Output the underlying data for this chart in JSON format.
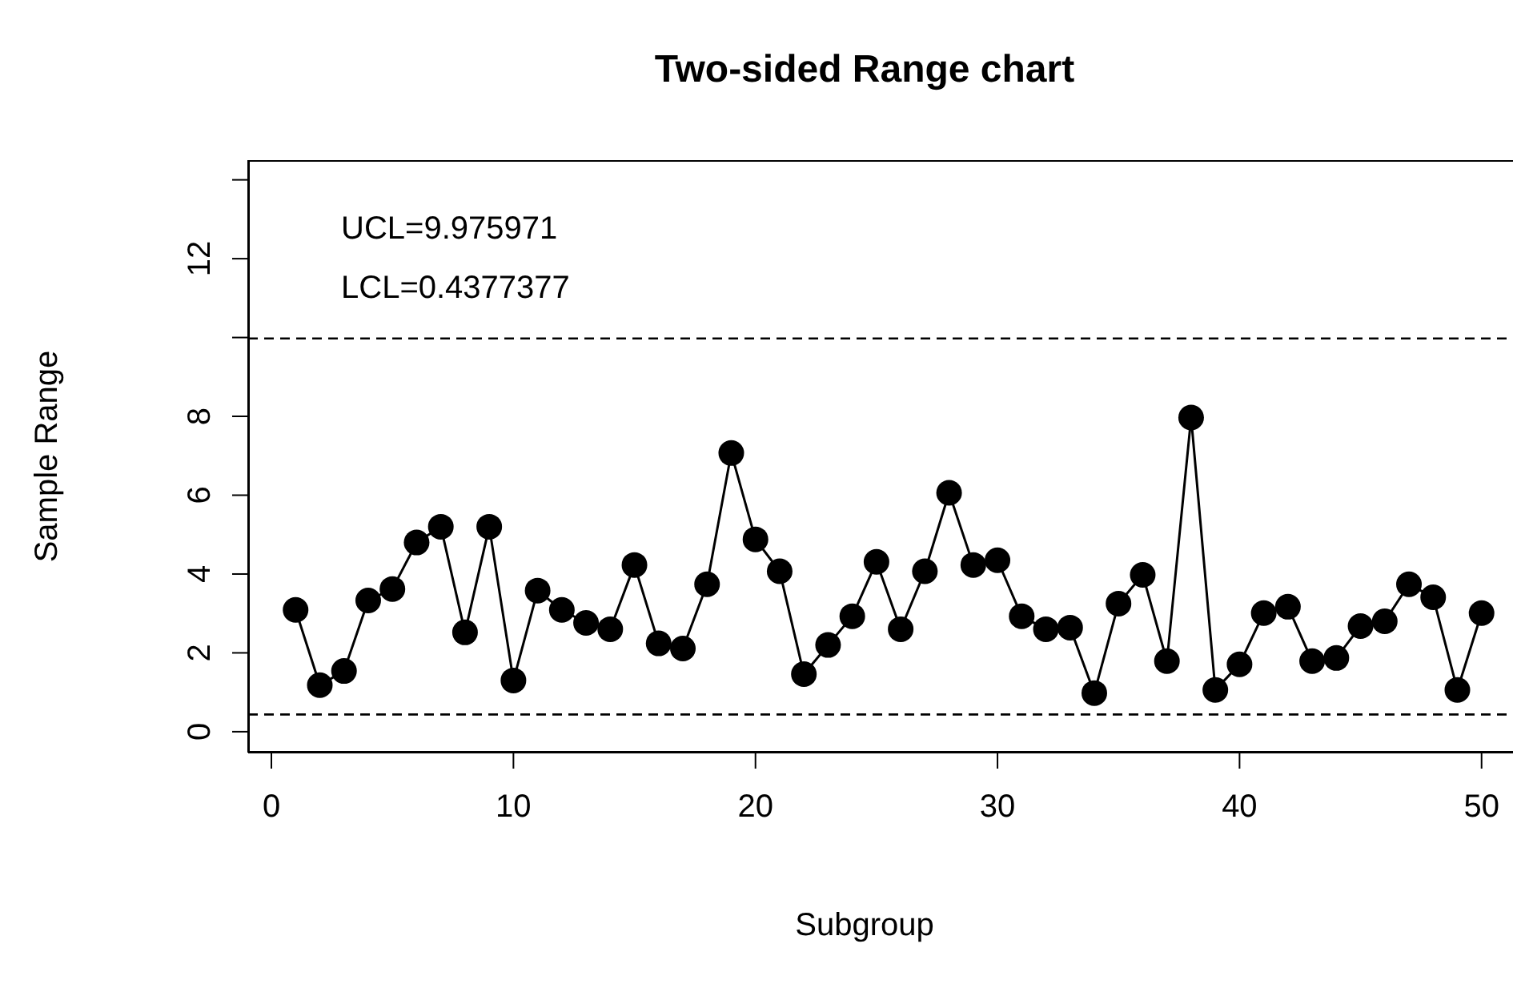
{
  "chart_data": {
    "type": "line",
    "title": "Two-sided Range chart",
    "xlabel": "Subgroup",
    "ylabel": "Sample Range",
    "annotations": [
      "UCL=9.975971",
      "LCL=0.4377377"
    ],
    "x": [
      1,
      2,
      3,
      4,
      5,
      6,
      7,
      8,
      9,
      10,
      11,
      12,
      13,
      14,
      15,
      16,
      17,
      18,
      19,
      20,
      21,
      22,
      23,
      24,
      25,
      26,
      27,
      28,
      29,
      30,
      31,
      32,
      33,
      34,
      35,
      36,
      37,
      38,
      39,
      40,
      41,
      42,
      43,
      44,
      45,
      46,
      47,
      48,
      49,
      50
    ],
    "series": [
      {
        "color": "#000000",
        "values": [
          3.09,
          1.18,
          1.54,
          3.33,
          3.62,
          4.8,
          5.2,
          2.52,
          5.2,
          1.3,
          3.58,
          3.09,
          2.76,
          2.6,
          4.23,
          2.24,
          2.11,
          3.74,
          7.07,
          4.88,
          4.07,
          1.46,
          2.2,
          2.93,
          4.31,
          2.6,
          4.07,
          6.06,
          4.23,
          4.35,
          2.93,
          2.6,
          2.64,
          0.98,
          3.25,
          3.98,
          1.79,
          7.97,
          1.06,
          1.71,
          3.01,
          3.17,
          1.79,
          1.87,
          2.68,
          2.8,
          3.74,
          3.41,
          1.06,
          3.01
        ]
      }
    ],
    "xlim": [
      -0.96,
      51.96
    ],
    "xticks": [
      0,
      10,
      20,
      30,
      40,
      50
    ],
    "ylim": [
      -0.53,
      14.5
    ],
    "yticks": [
      0,
      2,
      4,
      6,
      8,
      {
        "value": 10,
        "label": null
      },
      12,
      {
        "value": 14,
        "label": null
      }
    ],
    "ref_lines": [
      {
        "axis": "y",
        "value": 9.975971,
        "label": null,
        "line_style": "dashed"
      },
      {
        "axis": "y",
        "value": 0.4377377,
        "label": null,
        "line_style": "dashed"
      }
    ],
    "marker": "circle",
    "line_style": "solid",
    "grid": false,
    "legend": false
  }
}
